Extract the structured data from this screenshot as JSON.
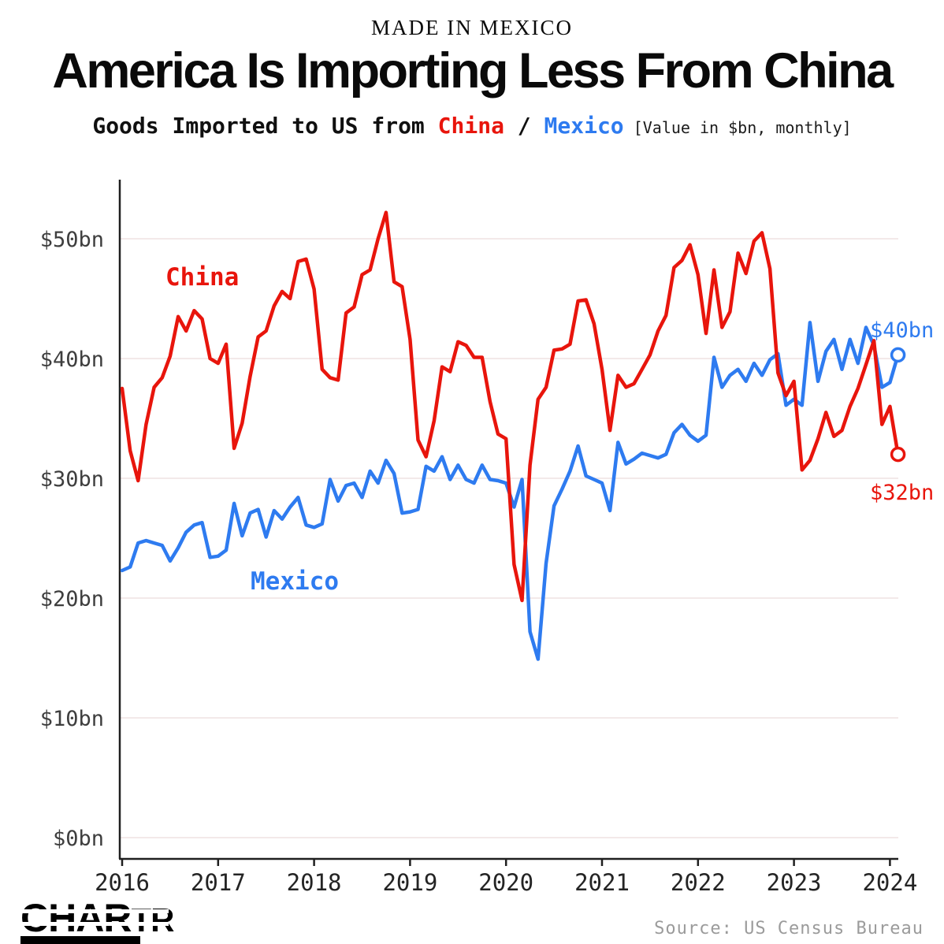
{
  "header": {
    "kicker": "MADE IN MEXICO",
    "title": "America Is Importing Less From China",
    "subtitle_prefix": "Goods Imported to US from ",
    "subtitle_china": "China",
    "subtitle_separator": " / ",
    "subtitle_mexico": "Mexico",
    "subtitle_note": " [Value in $bn, monthly]"
  },
  "chart_data": {
    "type": "line",
    "title": "Goods Imported to US from China / Mexico",
    "ylabel": "Value in $bn, monthly",
    "xlabel": "",
    "x_start": "2016-01",
    "x_end": "2024-02",
    "x_ticks": [
      "2016",
      "2017",
      "2018",
      "2019",
      "2020",
      "2021",
      "2022",
      "2023",
      "2024"
    ],
    "y_axis": {
      "values": [
        0,
        10,
        20,
        30,
        40,
        50
      ],
      "labels": [
        "$0bn",
        "$10bn",
        "$20bn",
        "$30bn",
        "$40bn",
        "$50bn"
      ]
    },
    "ylim": [
      0,
      54
    ],
    "grid": "horizontal",
    "legend_position": "inline-labels",
    "series": [
      {
        "name": "China",
        "color": "#e8150c",
        "end_label": "$32bn",
        "values": [
          37.5,
          32.3,
          29.8,
          34.5,
          37.6,
          38.4,
          40.2,
          43.5,
          42.3,
          44.0,
          43.3,
          40.0,
          39.6,
          41.2,
          32.5,
          34.6,
          38.5,
          41.8,
          42.3,
          44.4,
          45.6,
          45.0,
          48.1,
          48.3,
          45.8,
          39.1,
          38.4,
          38.2,
          43.8,
          44.3,
          47.0,
          47.4,
          50.0,
          52.2,
          46.4,
          46.0,
          41.6,
          33.2,
          31.8,
          34.8,
          39.3,
          38.9,
          41.4,
          41.1,
          40.1,
          40.1,
          36.4,
          33.7,
          33.3,
          22.8,
          19.8,
          31.1,
          36.6,
          37.6,
          40.7,
          40.8,
          41.2,
          44.8,
          44.9,
          42.9,
          39.1,
          34.0,
          38.6,
          37.6,
          37.9,
          39.1,
          40.3,
          42.3,
          43.6,
          47.6,
          48.2,
          49.5,
          47.0,
          42.1,
          47.4,
          42.6,
          43.9,
          48.8,
          47.1,
          49.8,
          50.5,
          47.5,
          38.8,
          36.9,
          38.1,
          30.7,
          31.5,
          33.3,
          35.5,
          33.5,
          34.0,
          36.0,
          37.5,
          39.5,
          41.5,
          34.5,
          36.0,
          32.0
        ]
      },
      {
        "name": "Mexico",
        "color": "#2e7bf0",
        "end_label": "$40bn",
        "values": [
          22.3,
          22.6,
          24.6,
          24.8,
          24.6,
          24.4,
          23.1,
          24.2,
          25.5,
          26.1,
          26.3,
          23.4,
          23.5,
          24.0,
          27.9,
          25.2,
          27.1,
          27.4,
          25.1,
          27.3,
          26.6,
          27.6,
          28.4,
          26.1,
          25.9,
          26.2,
          29.9,
          28.1,
          29.4,
          29.6,
          28.4,
          30.6,
          29.6,
          31.5,
          30.4,
          27.1,
          27.2,
          27.4,
          31.0,
          30.6,
          31.8,
          29.9,
          31.1,
          29.9,
          29.6,
          31.1,
          29.9,
          29.8,
          29.6,
          27.6,
          29.9,
          17.2,
          14.9,
          22.9,
          27.7,
          29.1,
          30.6,
          32.7,
          30.2,
          29.9,
          29.6,
          27.3,
          33.0,
          31.2,
          31.6,
          32.1,
          31.9,
          31.7,
          32.0,
          33.8,
          34.5,
          33.6,
          33.1,
          33.6,
          40.1,
          37.6,
          38.6,
          39.1,
          38.1,
          39.6,
          38.6,
          39.9,
          40.4,
          36.1,
          36.6,
          36.1,
          43.0,
          38.1,
          40.6,
          41.6,
          39.1,
          41.6,
          39.6,
          42.6,
          41.1,
          37.6,
          38.0,
          40.3
        ]
      }
    ]
  },
  "footer": {
    "logo_part1": "CHAR",
    "logo_part2": "TR",
    "source": "Source: US Census Bureau"
  },
  "colors": {
    "china_red": "#e8150c",
    "mexico_blue": "#2e7bf0",
    "grid": "#f3e9e9",
    "axis": "#1f1f1f",
    "source_gray": "#9b9b9b"
  }
}
